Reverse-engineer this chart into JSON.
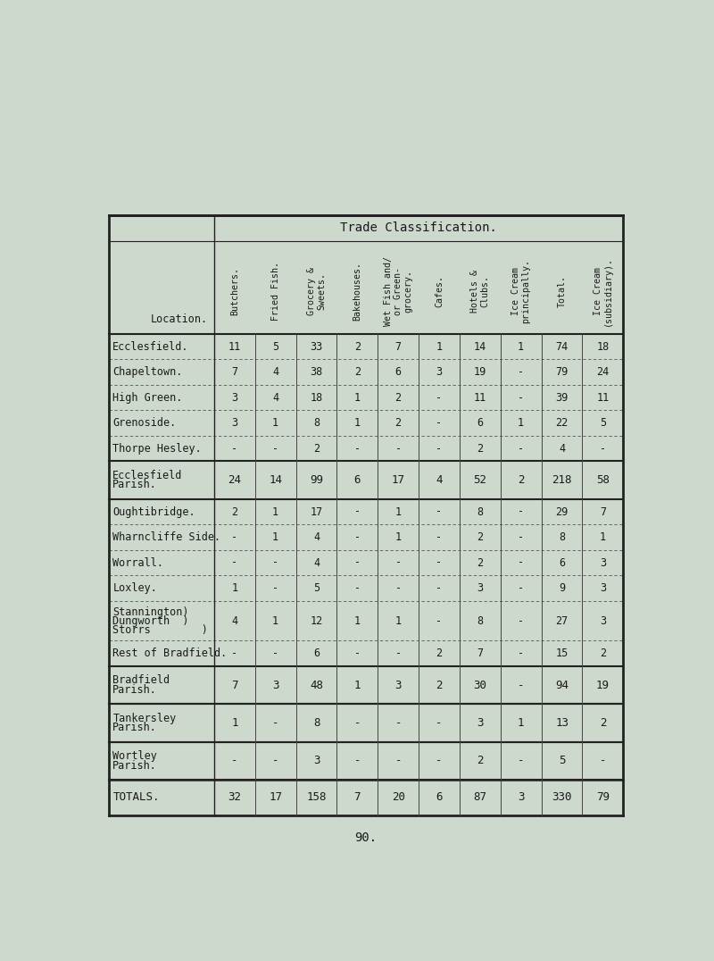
{
  "title": "Trade Classification.",
  "col_headers": [
    "Butchers.",
    "Fried Fish.",
    "Grocery &\nSweets.",
    "Bakehouses.",
    "Wet Fish and/\nor Green-\ngrocery.",
    "Cafes.",
    "Hotels &\nClubs.",
    "Ice Cream\nprincipally.",
    "Total.",
    "Ice Cream\n(subsidiary)."
  ],
  "location_col_header": "Location.",
  "sections": [
    {
      "rows": [
        {
          "loc": "Ecclesfield.",
          "vals": [
            "11",
            "5",
            "33",
            "2",
            "7",
            "1",
            "14",
            "1",
            "74",
            "18"
          ]
        },
        {
          "loc": "Chapeltown.",
          "vals": [
            "7",
            "4",
            "38",
            "2",
            "6",
            "3",
            "19",
            "-",
            "79",
            "24"
          ]
        },
        {
          "loc": "High Green.",
          "vals": [
            "3",
            "4",
            "18",
            "1",
            "2",
            "-",
            "11",
            "-",
            "39",
            "11"
          ]
        },
        {
          "loc": "Grenoside.",
          "vals": [
            "3",
            "1",
            "8",
            "1",
            "2",
            "-",
            "6",
            "1",
            "22",
            "5"
          ]
        },
        {
          "loc": "Thorpe Hesley.",
          "vals": [
            "-",
            "-",
            "2",
            "-",
            "-",
            "-",
            "2",
            "-",
            "4",
            "-"
          ]
        }
      ],
      "subtotal": {
        "loc": "Ecclesfield\n  Parish.",
        "vals": [
          "24",
          "14",
          "99",
          "6",
          "17",
          "4",
          "52",
          "2",
          "218",
          "58"
        ]
      }
    },
    {
      "rows": [
        {
          "loc": "Oughtibridge.",
          "vals": [
            "2",
            "1",
            "17",
            "-",
            "1",
            "-",
            "8",
            "-",
            "29",
            "7"
          ]
        },
        {
          "loc": "Wharncliffe Side.",
          "vals": [
            "-",
            "1",
            "4",
            "-",
            "1",
            "-",
            "2",
            "-",
            "8",
            "1"
          ]
        },
        {
          "loc": "Worrall.",
          "vals": [
            "-",
            "-",
            "4",
            "-",
            "-",
            "-",
            "2",
            "-",
            "6",
            "3"
          ]
        },
        {
          "loc": "Loxley.",
          "vals": [
            "1",
            "-",
            "5",
            "-",
            "-",
            "-",
            "3",
            "-",
            "9",
            "3"
          ]
        },
        {
          "loc": "Stannington)\nDungworth  )\nStorrs        )",
          "vals": [
            "4",
            "1",
            "12",
            "1",
            "1",
            "-",
            "8",
            "-",
            "27",
            "3"
          ]
        },
        {
          "loc": "Rest of Bradfield.",
          "vals": [
            "-",
            "-",
            "6",
            "-",
            "-",
            "2",
            "7",
            "-",
            "15",
            "2"
          ]
        }
      ],
      "subtotal": {
        "loc": "Bradfield\n  Parish.",
        "vals": [
          "7",
          "3",
          "48",
          "1",
          "3",
          "2",
          "30",
          "-",
          "94",
          "19"
        ]
      }
    },
    {
      "rows": [],
      "subtotal": {
        "loc": "Tankersley\n  Parish.",
        "vals": [
          "1",
          "-",
          "8",
          "-",
          "-",
          "-",
          "3",
          "1",
          "13",
          "2"
        ]
      }
    },
    {
      "rows": [],
      "subtotal": {
        "loc": "Wortley\n  Parish.",
        "vals": [
          "-",
          "-",
          "3",
          "-",
          "-",
          "-",
          "2",
          "-",
          "5",
          "-"
        ]
      }
    }
  ],
  "totals": {
    "loc": "TOTALS.",
    "vals": [
      "32",
      "17",
      "158",
      "7",
      "20",
      "6",
      "87",
      "3",
      "330",
      "79"
    ]
  },
  "bg_color": "#cdd9cd",
  "text_color": "#1a1a1a",
  "border_color": "#222222",
  "font_size": 8.5,
  "page_number": "90."
}
